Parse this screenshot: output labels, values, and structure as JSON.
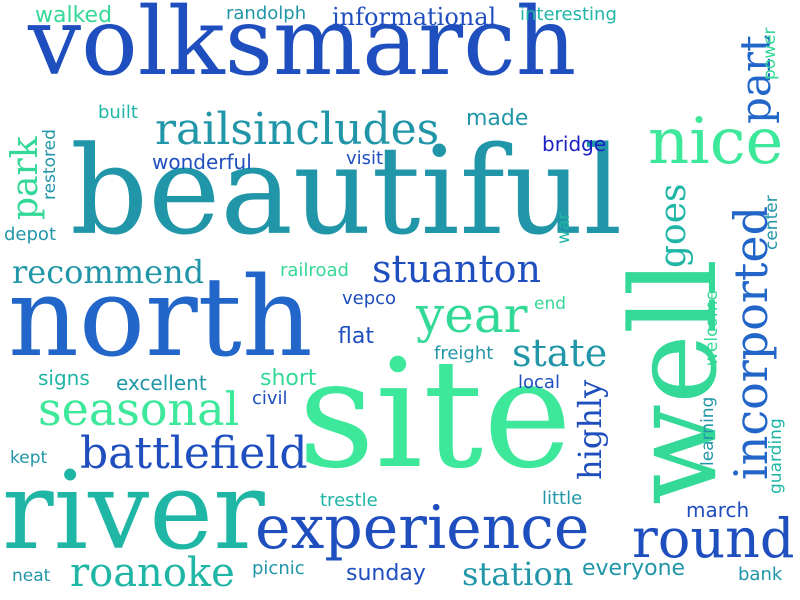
{
  "word_cloud": {
    "colors": {
      "background": "#ffffff",
      "blue": "#1f4fbf",
      "deep_blue": "#1a1fc4",
      "royal": "#2166c8",
      "teal": "#2196a8",
      "cyan": "#20b6a6",
      "green": "#34d998",
      "mint": "#3ee89a"
    },
    "words": {
      "volksmarch": "volksmarch",
      "beautiful": "beautiful",
      "north": "north",
      "site": "site",
      "river": "river",
      "well": "well",
      "nice": "nice",
      "incorported": "incorported",
      "experience": "experience",
      "seasonal": "seasonal",
      "battlefield": "battlefield",
      "railsincludes": "railsincludes",
      "recommend": "recommend",
      "stuanton": "stuanton",
      "year": "year",
      "state": "state",
      "round": "round",
      "roanoke": "roanoke",
      "station": "station",
      "informational": "informational",
      "interesting": "interesting",
      "walked": "walked",
      "randolph": "randolph",
      "part": "part",
      "power": "power",
      "built": "built",
      "made": "made",
      "restored": "restored",
      "park": "park",
      "wonderful": "wonderful",
      "visit": "visit",
      "bridge": "bridge",
      "goes": "goes",
      "depot": "depot",
      "war": "war",
      "center": "center",
      "railroad": "railroad",
      "vepco": "vepco",
      "end": "end",
      "welcome": "welcome",
      "flat": "flat",
      "freight": "freight",
      "signs": "signs",
      "excellent": "excellent",
      "short": "short",
      "local": "local",
      "highly": "highly",
      "civil": "civil",
      "learning": "learning",
      "guarding": "guarding",
      "kept": "kept",
      "trestle": "trestle",
      "little": "little",
      "march": "march",
      "neat": "neat",
      "picnic": "picnic",
      "sunday": "sunday",
      "everyone": "everyone",
      "bank": "bank"
    }
  }
}
